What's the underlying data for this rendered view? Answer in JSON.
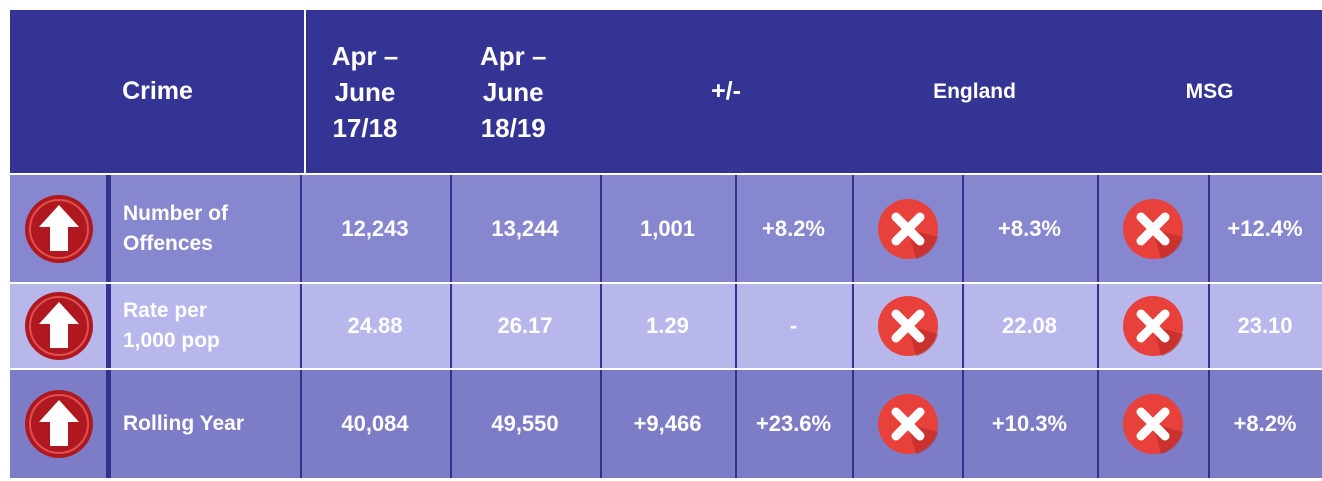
{
  "header": {
    "crime": "Crime",
    "period1": "Apr –\nJune\n17/18",
    "period2": "Apr –\nJune\n18/19",
    "change": "+/-",
    "england": "England",
    "msg": "MSG"
  },
  "rows": [
    {
      "label": "Number of\nOffences",
      "p1": "12,243",
      "p2": "13,244",
      "diff": "1,001",
      "pct": "+8.2%",
      "england": "+8.3%",
      "msg": "+12.4%"
    },
    {
      "label": "Rate per\n1,000 pop",
      "p1": "24.88",
      "p2": "26.17",
      "diff": "1.29",
      "pct": "-",
      "england": "22.08",
      "msg": "23.10"
    },
    {
      "label": "Rolling Year",
      "p1": "40,084",
      "p2": "49,550",
      "diff": "+9,466",
      "pct": "+23.6%",
      "england": "+10.3%",
      "msg": "+8.2%"
    }
  ]
}
